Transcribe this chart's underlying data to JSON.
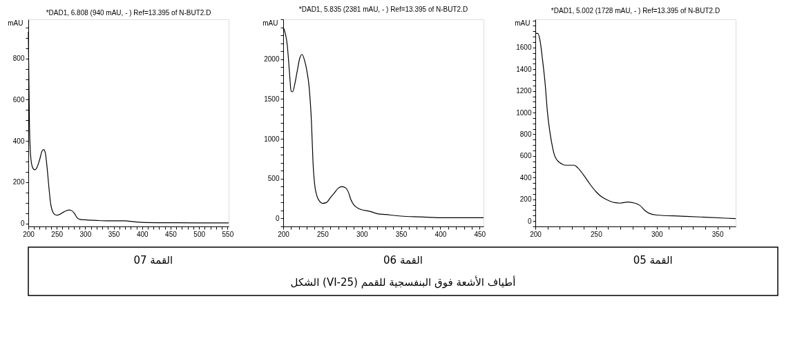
{
  "chart_data": [
    {
      "type": "line",
      "title": "*DAD1, 6.808 (940 mAU, - ) Ref=13.395 of  N-BUT2.D",
      "ylabel": "mAU",
      "annotations": [
        "القمة 07",
        "الشكل (VI-25) أطياف الأشعة فوق البنفسجية للقمم"
      ],
      "xlim": [
        200,
        552
      ],
      "ylim": [
        -15,
        990
      ],
      "xticks": [
        200,
        {
          "value": 210,
          "label": null
        },
        {
          "value": 220,
          "label": null
        },
        {
          "value": 230,
          "label": null
        },
        {
          "value": 240,
          "label": null
        },
        250,
        {
          "value": 260,
          "label": null
        },
        {
          "value": 270,
          "label": null
        },
        {
          "value": 280,
          "label": null
        },
        {
          "value": 290,
          "label": null
        },
        300,
        {
          "value": 310,
          "label": null
        },
        {
          "value": 320,
          "label": null
        },
        {
          "value": 330,
          "label": null
        },
        {
          "value": 340,
          "label": null
        },
        350,
        {
          "value": 360,
          "label": null
        },
        {
          "value": 370,
          "label": null
        },
        {
          "value": 380,
          "label": null
        },
        {
          "value": 390,
          "label": null
        },
        400,
        {
          "value": 410,
          "label": null
        },
        {
          "value": 420,
          "label": null
        },
        {
          "value": 430,
          "label": null
        },
        {
          "value": 440,
          "label": null
        },
        450,
        {
          "value": 460,
          "label": null
        },
        {
          "value": 470,
          "label": null
        },
        {
          "value": 480,
          "label": null
        },
        {
          "value": 490,
          "label": null
        },
        500,
        {
          "value": 510,
          "label": null
        },
        {
          "value": 520,
          "label": null
        },
        {
          "value": 530,
          "label": null
        },
        {
          "value": 540,
          "label": null
        },
        550
      ],
      "yticks": [
        0,
        {
          "value": 50,
          "label": null
        },
        {
          "value": 100,
          "label": null
        },
        {
          "value": 150,
          "label": null
        },
        200,
        {
          "value": 250,
          "label": null
        },
        {
          "value": 300,
          "label": null
        },
        {
          "value": 350,
          "label": null
        },
        400,
        {
          "value": 450,
          "label": null
        },
        {
          "value": 500,
          "label": null
        },
        {
          "value": 550,
          "label": null
        },
        600,
        {
          "value": 650,
          "label": null
        },
        {
          "value": 700,
          "label": null
        },
        {
          "value": 750,
          "label": null
        },
        800,
        {
          "value": 850,
          "label": null
        },
        {
          "value": 900,
          "label": null
        },
        {
          "value": 950,
          "label": null
        }
      ],
      "x": [
        200,
        201,
        202,
        204,
        207,
        211,
        215,
        220,
        224,
        227,
        230,
        233,
        236,
        239,
        243,
        247,
        251,
        256,
        262,
        268,
        272,
        277,
        281,
        285,
        290,
        300,
        320,
        340,
        370,
        385,
        400,
        450,
        500,
        552
      ],
      "series": [
        {
          "color": "#000000",
          "values": [
            930,
            700,
            480,
            330,
            275,
            260,
            270,
            310,
            350,
            358,
            340,
            270,
            180,
            100,
            55,
            42,
            40,
            45,
            55,
            63,
            65,
            60,
            48,
            30,
            20,
            17,
            14,
            12,
            12,
            8,
            5,
            3,
            2,
            2
          ]
        }
      ]
    },
    {
      "type": "line",
      "title": "*DAD1, 5.835 (2381 mAU, - ) Ref=13.395 of  N-BUT2.D",
      "ylabel": "mAU",
      "annotations": [
        "القمة 06"
      ],
      "xlim": [
        200,
        455
      ],
      "ylim": [
        -100,
        2500
      ],
      "xticks": [
        200,
        {
          "value": 210,
          "label": null
        },
        {
          "value": 220,
          "label": null
        },
        {
          "value": 230,
          "label": null
        },
        {
          "value": 240,
          "label": null
        },
        250,
        {
          "value": 260,
          "label": null
        },
        {
          "value": 270,
          "label": null
        },
        {
          "value": 280,
          "label": null
        },
        {
          "value": 290,
          "label": null
        },
        300,
        {
          "value": 310,
          "label": null
        },
        {
          "value": 320,
          "label": null
        },
        {
          "value": 330,
          "label": null
        },
        {
          "value": 340,
          "label": null
        },
        350,
        {
          "value": 360,
          "label": null
        },
        {
          "value": 370,
          "label": null
        },
        {
          "value": 380,
          "label": null
        },
        {
          "value": 390,
          "label": null
        },
        400,
        {
          "value": 410,
          "label": null
        },
        {
          "value": 420,
          "label": null
        },
        {
          "value": 430,
          "label": null
        },
        {
          "value": 440,
          "label": null
        },
        450
      ],
      "yticks": [
        {
          "value": -100,
          "label": null
        },
        0,
        {
          "value": 100,
          "label": null
        },
        {
          "value": 200,
          "label": null
        },
        {
          "value": 300,
          "label": null
        },
        {
          "value": 400,
          "label": null
        },
        500,
        {
          "value": 600,
          "label": null
        },
        {
          "value": 700,
          "label": null
        },
        {
          "value": 800,
          "label": null
        },
        {
          "value": 900,
          "label": null
        },
        1000,
        {
          "value": 1100,
          "label": null
        },
        {
          "value": 1200,
          "label": null
        },
        {
          "value": 1300,
          "label": null
        },
        {
          "value": 1400,
          "label": null
        },
        1500,
        {
          "value": 1600,
          "label": null
        },
        {
          "value": 1700,
          "label": null
        },
        {
          "value": 1800,
          "label": null
        },
        {
          "value": 1900,
          "label": null
        },
        2000,
        {
          "value": 2100,
          "label": null
        },
        {
          "value": 2200,
          "label": null
        },
        {
          "value": 2300,
          "label": null
        },
        {
          "value": 2400,
          "label": null
        },
        {
          "value": 2500,
          "label": null
        }
      ],
      "x": [
        200,
        205,
        208,
        210,
        212,
        215,
        218,
        221,
        224,
        227,
        230,
        233,
        236,
        238,
        240,
        243,
        246,
        250,
        255,
        260,
        265,
        270,
        275,
        280,
        283,
        286,
        290,
        295,
        300,
        310,
        320,
        330,
        350,
        375,
        400,
        455
      ],
      "series": [
        {
          "color": "#000000",
          "values": [
            2400,
            2190,
            1830,
            1600,
            1590,
            1700,
            1860,
            2010,
            2060,
            1990,
            1860,
            1650,
            1200,
            690,
            430,
            280,
            220,
            190,
            200,
            260,
            320,
            380,
            400,
            380,
            330,
            240,
            170,
            130,
            110,
            90,
            60,
            50,
            30,
            20,
            10,
            10
          ]
        }
      ]
    },
    {
      "type": "line",
      "title": "*DAD1, 5.002 (1728 mAU, - ) Ref=13.395 of  N-BUT2.D",
      "ylabel": "mAU",
      "annotations": [
        "القمة  05"
      ],
      "xlim": [
        200,
        365
      ],
      "ylim": [
        -50,
        1860
      ],
      "xticks": [
        200,
        {
          "value": 210,
          "label": null
        },
        {
          "value": 220,
          "label": null
        },
        {
          "value": 230,
          "label": null
        },
        {
          "value": 240,
          "label": null
        },
        250,
        {
          "value": 260,
          "label": null
        },
        {
          "value": 270,
          "label": null
        },
        {
          "value": 280,
          "label": null
        },
        {
          "value": 290,
          "label": null
        },
        300,
        {
          "value": 310,
          "label": null
        },
        {
          "value": 320,
          "label": null
        },
        {
          "value": 330,
          "label": null
        },
        {
          "value": 340,
          "label": null
        },
        350,
        {
          "value": 360,
          "label": null
        }
      ],
      "yticks": [
        {
          "value": -50,
          "label": null
        },
        0,
        {
          "value": 50,
          "label": null
        },
        {
          "value": 100,
          "label": null
        },
        {
          "value": 150,
          "label": null
        },
        200,
        {
          "value": 250,
          "label": null
        },
        {
          "value": 300,
          "label": null
        },
        {
          "value": 350,
          "label": null
        },
        400,
        {
          "value": 450,
          "label": null
        },
        {
          "value": 500,
          "label": null
        },
        {
          "value": 550,
          "label": null
        },
        600,
        {
          "value": 650,
          "label": null
        },
        {
          "value": 700,
          "label": null
        },
        {
          "value": 750,
          "label": null
        },
        800,
        {
          "value": 850,
          "label": null
        },
        {
          "value": 900,
          "label": null
        },
        {
          "value": 950,
          "label": null
        },
        1000,
        {
          "value": 1050,
          "label": null
        },
        {
          "value": 1100,
          "label": null
        },
        {
          "value": 1150,
          "label": null
        },
        1200,
        {
          "value": 1250,
          "label": null
        },
        {
          "value": 1300,
          "label": null
        },
        {
          "value": 1350,
          "label": null
        },
        1400,
        {
          "value": 1450,
          "label": null
        },
        {
          "value": 1500,
          "label": null
        },
        {
          "value": 1550,
          "label": null
        },
        1600,
        {
          "value": 1650,
          "label": null
        },
        {
          "value": 1700,
          "label": null
        },
        {
          "value": 1750,
          "label": null
        },
        {
          "value": 1800,
          "label": null
        },
        {
          "value": 1850,
          "label": null
        }
      ],
      "x": [
        200,
        202,
        204,
        206,
        208,
        210,
        212,
        214,
        216,
        218,
        222,
        225,
        232,
        235,
        240,
        245,
        250,
        255,
        260,
        265,
        270,
        276,
        282,
        286,
        290,
        294,
        300,
        320,
        340,
        365
      ],
      "series": [
        {
          "color": "#000000",
          "values": [
            1730,
            1730,
            1655,
            1480,
            1275,
            1000,
            820,
            690,
            600,
            560,
            525,
            515,
            515,
            490,
            420,
            340,
            270,
            220,
            190,
            170,
            165,
            175,
            165,
            145,
            100,
            70,
            55,
            45,
            35,
            22
          ]
        }
      ]
    }
  ]
}
